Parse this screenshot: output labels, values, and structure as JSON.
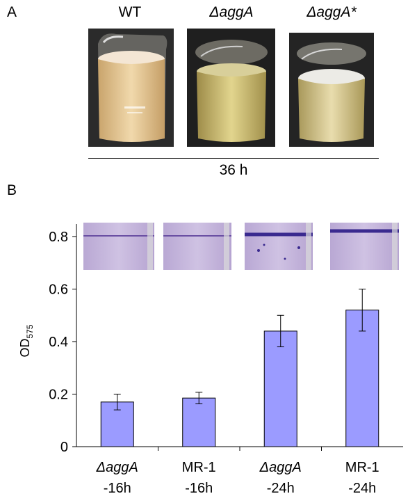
{
  "panel_a": {
    "label": "A",
    "conditions": [
      {
        "label": "WT",
        "italic": false
      },
      {
        "label": "ΔaggA",
        "italic": true
      },
      {
        "label": "ΔaggA*",
        "italic": true
      }
    ],
    "time_label": "36 h"
  },
  "panel_b": {
    "label": "B",
    "ylabel_main": "OD",
    "ylabel_sub": "575"
  },
  "chart_data": {
    "type": "bar",
    "categories": [
      "ΔaggA -16h",
      "MR-1 -16h",
      "ΔaggA -24h",
      "MR-1 -24h"
    ],
    "category_lines": [
      [
        "ΔaggA",
        "-16h"
      ],
      [
        "MR-1",
        "-16h"
      ],
      [
        "ΔaggA",
        "-24h"
      ],
      [
        "MR-1",
        "-24h"
      ]
    ],
    "category_italic_first_line": [
      true,
      false,
      true,
      false
    ],
    "values": [
      0.17,
      0.185,
      0.44,
      0.52
    ],
    "errors": [
      0.03,
      0.022,
      0.06,
      0.08
    ],
    "ylim": [
      0,
      0.8
    ],
    "yticks": [
      0,
      0.2,
      0.4,
      0.6,
      0.8
    ],
    "ytick_labels": [
      "0",
      "0.2",
      "0.4",
      "0.6",
      "0.8"
    ],
    "bar_color": "#9b9bff",
    "bar_edge": "#000000",
    "grid": false
  }
}
